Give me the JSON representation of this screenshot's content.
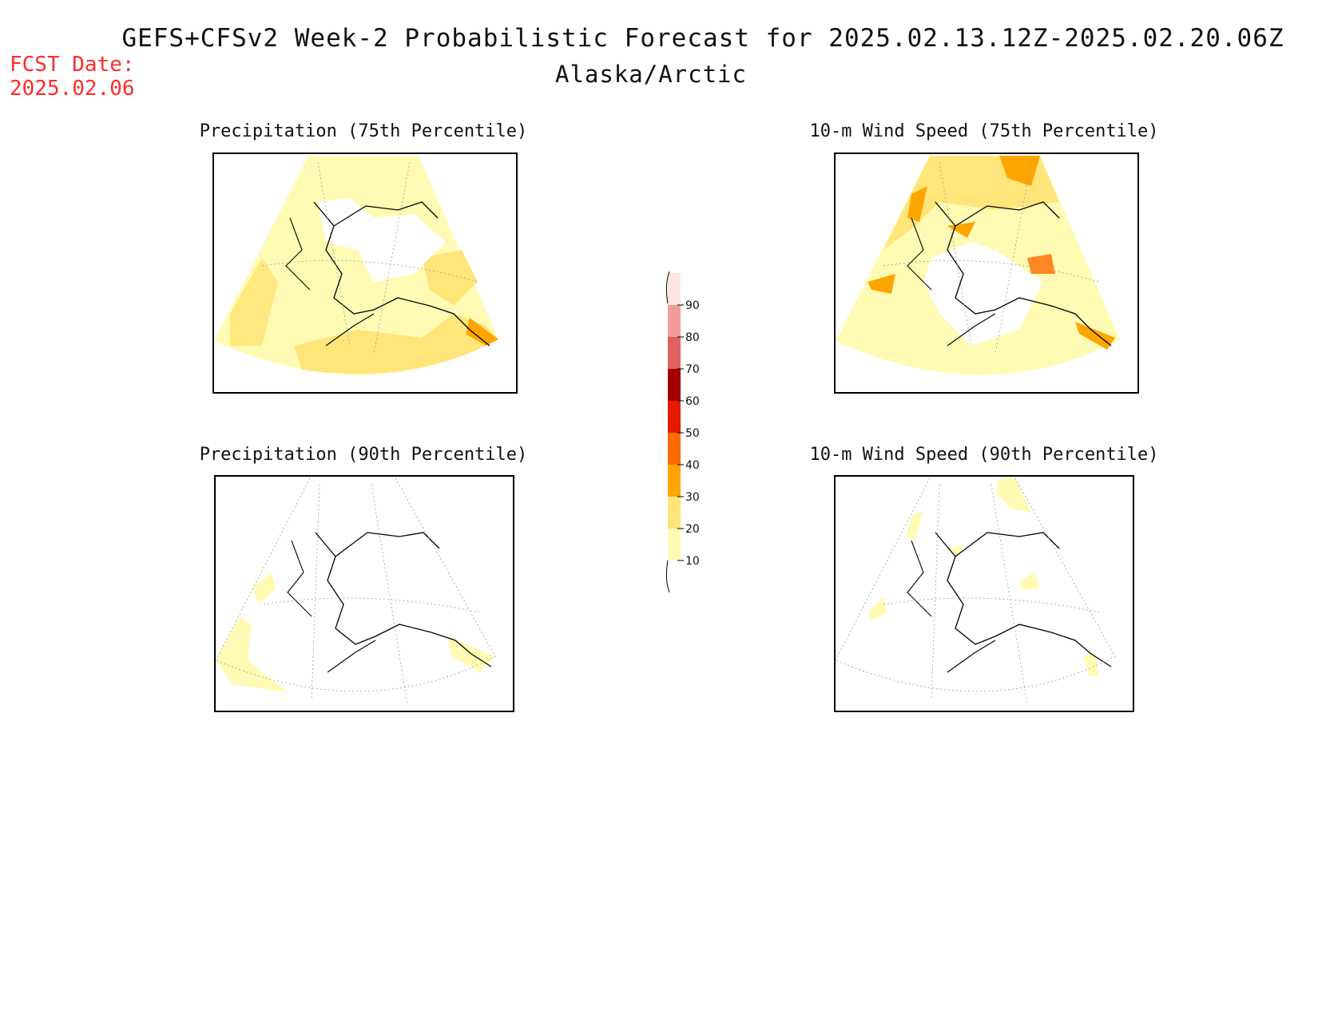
{
  "header": {
    "title": "GEFS+CFSv2 Week-2 Probabilistic Forecast for 2025.02.13.12Z-2025.02.20.06Z",
    "region": "Alaska/Arctic",
    "fcst_label": "FCST Date:",
    "fcst_date": "2025.02.06"
  },
  "panels": [
    {
      "title": "Precipitation (75th Percentile)"
    },
    {
      "title": "10-m Wind Speed (75th Percentile)"
    },
    {
      "title": "Precipitation (90th Percentile)"
    },
    {
      "title": "10-m Wind Speed (90th Percentile)"
    }
  ],
  "colorbar": {
    "levels": [
      "10",
      "20",
      "30",
      "40",
      "50",
      "60",
      "70",
      "80",
      "90"
    ],
    "colors": [
      "#fffbb4",
      "#ffe57a",
      "#ffa500",
      "#ff6a00",
      "#e61a00",
      "#a00000",
      "#e06060",
      "#f29a9a",
      "#ffe4e4"
    ]
  }
}
